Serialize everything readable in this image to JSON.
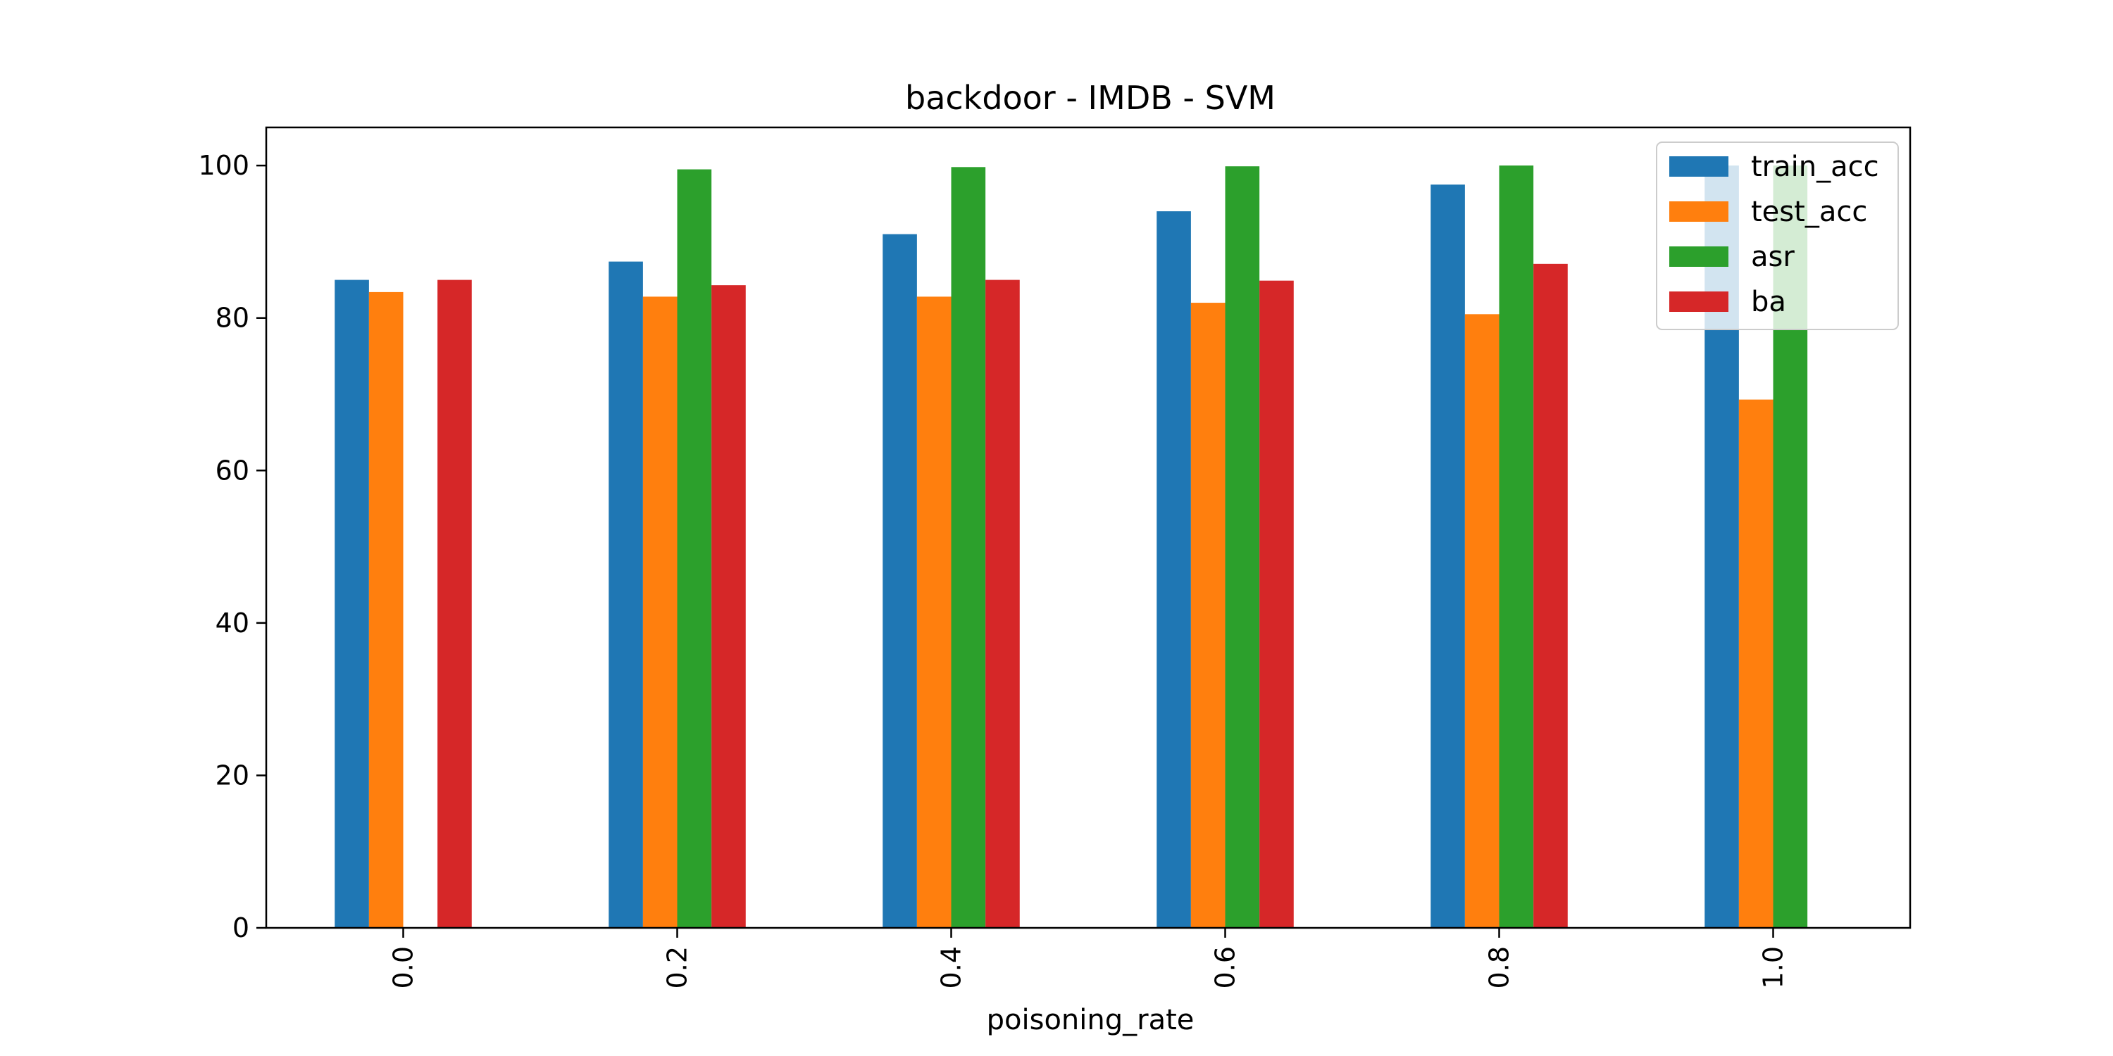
{
  "chart_data": {
    "type": "bar",
    "title": "backdoor - IMDB - SVM",
    "xlabel": "poisoning_rate",
    "ylabel": "",
    "categories": [
      "0.0",
      "0.2",
      "0.4",
      "0.6",
      "0.8",
      "1.0"
    ],
    "ylim": [
      0,
      105
    ],
    "yticks": [
      0,
      20,
      40,
      60,
      80,
      100
    ],
    "grid": false,
    "legend_position": "top-right",
    "xtick_rotation": "vertical",
    "series": [
      {
        "name": "train_acc",
        "color": "#1f77b4",
        "values": [
          85.0,
          87.4,
          91.0,
          94.0,
          97.5,
          100.0
        ]
      },
      {
        "name": "test_acc",
        "color": "#ff7f0e",
        "values": [
          83.4,
          82.8,
          82.8,
          82.0,
          80.5,
          69.3
        ]
      },
      {
        "name": "asr",
        "color": "#2ca02c",
        "values": [
          0,
          99.5,
          99.8,
          99.9,
          100.0,
          100.0
        ]
      },
      {
        "name": "ba",
        "color": "#d62728",
        "values": [
          85.0,
          84.3,
          85.0,
          84.9,
          87.1,
          0
        ]
      }
    ]
  }
}
